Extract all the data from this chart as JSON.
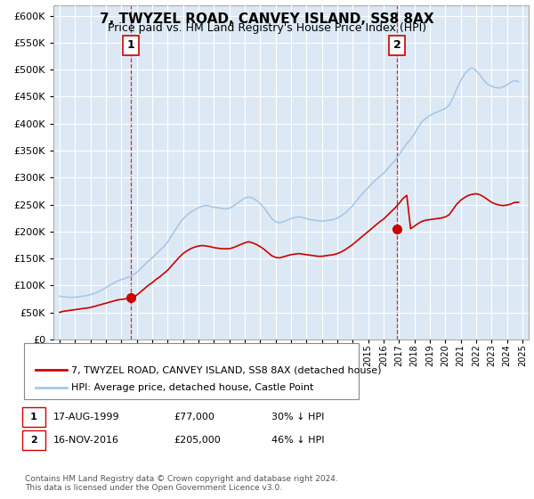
{
  "title": "7, TWYZEL ROAD, CANVEY ISLAND, SS8 8AX",
  "subtitle": "Price paid vs. HM Land Registry's House Price Index (HPI)",
  "bg_color": "#ffffff",
  "plot_bg_color": "#dce9f5",
  "grid_color": "#ffffff",
  "hpi_color": "#a8c8e8",
  "price_color": "#cc0000",
  "ylim": [
    0,
    620000
  ],
  "yticks": [
    0,
    50000,
    100000,
    150000,
    200000,
    250000,
    300000,
    350000,
    400000,
    450000,
    500000,
    550000,
    600000
  ],
  "sale1_year": 1999.625,
  "sale1_price": 77000,
  "sale1_label": "1",
  "sale2_year": 2016.875,
  "sale2_price": 205000,
  "sale2_label": "2",
  "legend_line1": "7, TWYZEL ROAD, CANVEY ISLAND, SS8 8AX (detached house)",
  "legend_line2": "HPI: Average price, detached house, Castle Point",
  "table_row1": [
    "1",
    "17-AUG-1999",
    "£77,000",
    "30% ↓ HPI"
  ],
  "table_row2": [
    "2",
    "16-NOV-2016",
    "£205,000",
    "46% ↓ HPI"
  ],
  "footnote": "Contains HM Land Registry data © Crown copyright and database right 2024.\nThis data is licensed under the Open Government Licence v3.0.",
  "hpi_data_x": [
    1995.0,
    1995.25,
    1995.5,
    1995.75,
    1996.0,
    1996.25,
    1996.5,
    1996.75,
    1997.0,
    1997.25,
    1997.5,
    1997.75,
    1998.0,
    1998.25,
    1998.5,
    1998.75,
    1999.0,
    1999.25,
    1999.5,
    1999.75,
    2000.0,
    2000.25,
    2000.5,
    2000.75,
    2001.0,
    2001.25,
    2001.5,
    2001.75,
    2002.0,
    2002.25,
    2002.5,
    2002.75,
    2003.0,
    2003.25,
    2003.5,
    2003.75,
    2004.0,
    2004.25,
    2004.5,
    2004.75,
    2005.0,
    2005.25,
    2005.5,
    2005.75,
    2006.0,
    2006.25,
    2006.5,
    2006.75,
    2007.0,
    2007.25,
    2007.5,
    2007.75,
    2008.0,
    2008.25,
    2008.5,
    2008.75,
    2009.0,
    2009.25,
    2009.5,
    2009.75,
    2010.0,
    2010.25,
    2010.5,
    2010.75,
    2011.0,
    2011.25,
    2011.5,
    2011.75,
    2012.0,
    2012.25,
    2012.5,
    2012.75,
    2013.0,
    2013.25,
    2013.5,
    2013.75,
    2014.0,
    2014.25,
    2014.5,
    2014.75,
    2015.0,
    2015.25,
    2015.5,
    2015.75,
    2016.0,
    2016.25,
    2016.5,
    2016.75,
    2017.0,
    2017.25,
    2017.5,
    2017.75,
    2018.0,
    2018.25,
    2018.5,
    2018.75,
    2019.0,
    2019.25,
    2019.5,
    2019.75,
    2020.0,
    2020.25,
    2020.5,
    2020.75,
    2021.0,
    2021.25,
    2021.5,
    2021.75,
    2022.0,
    2022.25,
    2022.5,
    2022.75,
    2023.0,
    2023.25,
    2023.5,
    2023.75,
    2024.0,
    2024.25,
    2024.5,
    2024.75
  ],
  "hpi_data_y": [
    80000,
    79000,
    78000,
    78000,
    78000,
    79000,
    80000,
    81000,
    83000,
    85000,
    88000,
    92000,
    96000,
    100000,
    104000,
    108000,
    111000,
    113000,
    116000,
    119000,
    124000,
    131000,
    138000,
    145000,
    151000,
    158000,
    165000,
    172000,
    180000,
    192000,
    203000,
    214000,
    223000,
    230000,
    236000,
    240000,
    244000,
    247000,
    248000,
    247000,
    245000,
    244000,
    243000,
    242000,
    243000,
    247000,
    252000,
    257000,
    262000,
    264000,
    262000,
    258000,
    252000,
    244000,
    234000,
    224000,
    218000,
    216000,
    218000,
    221000,
    224000,
    226000,
    227000,
    226000,
    224000,
    222000,
    221000,
    220000,
    219000,
    220000,
    221000,
    222000,
    225000,
    229000,
    234000,
    241000,
    248000,
    257000,
    266000,
    274000,
    281000,
    289000,
    296000,
    302000,
    308000,
    316000,
    324000,
    332000,
    342000,
    353000,
    363000,
    371000,
    381000,
    394000,
    404000,
    410000,
    415000,
    419000,
    422000,
    425000,
    428000,
    434000,
    448000,
    465000,
    480000,
    492000,
    500000,
    503000,
    498000,
    490000,
    480000,
    473000,
    469000,
    467000,
    466000,
    468000,
    472000,
    477000,
    480000,
    478000
  ],
  "price_data_x": [
    1995.0,
    1995.25,
    1995.5,
    1995.75,
    1996.0,
    1996.25,
    1996.5,
    1996.75,
    1997.0,
    1997.25,
    1997.5,
    1997.75,
    1998.0,
    1998.25,
    1998.5,
    1998.75,
    1999.0,
    1999.25,
    1999.5,
    1999.75,
    2000.0,
    2000.25,
    2000.5,
    2000.75,
    2001.0,
    2001.25,
    2001.5,
    2001.75,
    2002.0,
    2002.25,
    2002.5,
    2002.75,
    2003.0,
    2003.25,
    2003.5,
    2003.75,
    2004.0,
    2004.25,
    2004.5,
    2004.75,
    2005.0,
    2005.25,
    2005.5,
    2005.75,
    2006.0,
    2006.25,
    2006.5,
    2006.75,
    2007.0,
    2007.25,
    2007.5,
    2007.75,
    2008.0,
    2008.25,
    2008.5,
    2008.75,
    2009.0,
    2009.25,
    2009.5,
    2009.75,
    2010.0,
    2010.25,
    2010.5,
    2010.75,
    2011.0,
    2011.25,
    2011.5,
    2011.75,
    2012.0,
    2012.25,
    2012.5,
    2012.75,
    2013.0,
    2013.25,
    2013.5,
    2013.75,
    2014.0,
    2014.25,
    2014.5,
    2014.75,
    2015.0,
    2015.25,
    2015.5,
    2015.75,
    2016.0,
    2016.25,
    2016.5,
    2016.75,
    2017.0,
    2017.25,
    2017.5,
    2017.75,
    2018.0,
    2018.25,
    2018.5,
    2018.75,
    2019.0,
    2019.25,
    2019.5,
    2019.75,
    2020.0,
    2020.25,
    2020.5,
    2020.75,
    2021.0,
    2021.25,
    2021.5,
    2021.75,
    2022.0,
    2022.25,
    2022.5,
    2022.75,
    2023.0,
    2023.25,
    2023.5,
    2023.75,
    2024.0,
    2024.25,
    2024.5,
    2024.75
  ],
  "price_data_y": [
    50000,
    52000,
    53000,
    54000,
    55000,
    56000,
    57000,
    58000,
    59000,
    61000,
    63000,
    65000,
    67000,
    69000,
    71000,
    73000,
    74000,
    75000,
    76000,
    77000,
    82000,
    88000,
    94000,
    100000,
    105000,
    111000,
    116000,
    122000,
    128000,
    136000,
    144000,
    152000,
    159000,
    164000,
    168000,
    171000,
    173000,
    174000,
    173000,
    172000,
    170000,
    169000,
    168000,
    168000,
    168000,
    170000,
    173000,
    176000,
    179000,
    181000,
    179000,
    176000,
    172000,
    167000,
    161000,
    155000,
    152000,
    151000,
    153000,
    155000,
    157000,
    158000,
    159000,
    158000,
    157000,
    156000,
    155000,
    154000,
    154000,
    155000,
    156000,
    157000,
    159000,
    162000,
    166000,
    171000,
    176000,
    182000,
    188000,
    194000,
    200000,
    206000,
    212000,
    218000,
    223000,
    230000,
    237000,
    244000,
    252000,
    261000,
    267000,
    205000,
    210000,
    215000,
    219000,
    221000,
    222000,
    223000,
    224000,
    225000,
    227000,
    231000,
    241000,
    251000,
    258000,
    263000,
    267000,
    269000,
    270000,
    268000,
    264000,
    259000,
    254000,
    251000,
    249000,
    248000,
    249000,
    251000,
    254000,
    254000
  ]
}
